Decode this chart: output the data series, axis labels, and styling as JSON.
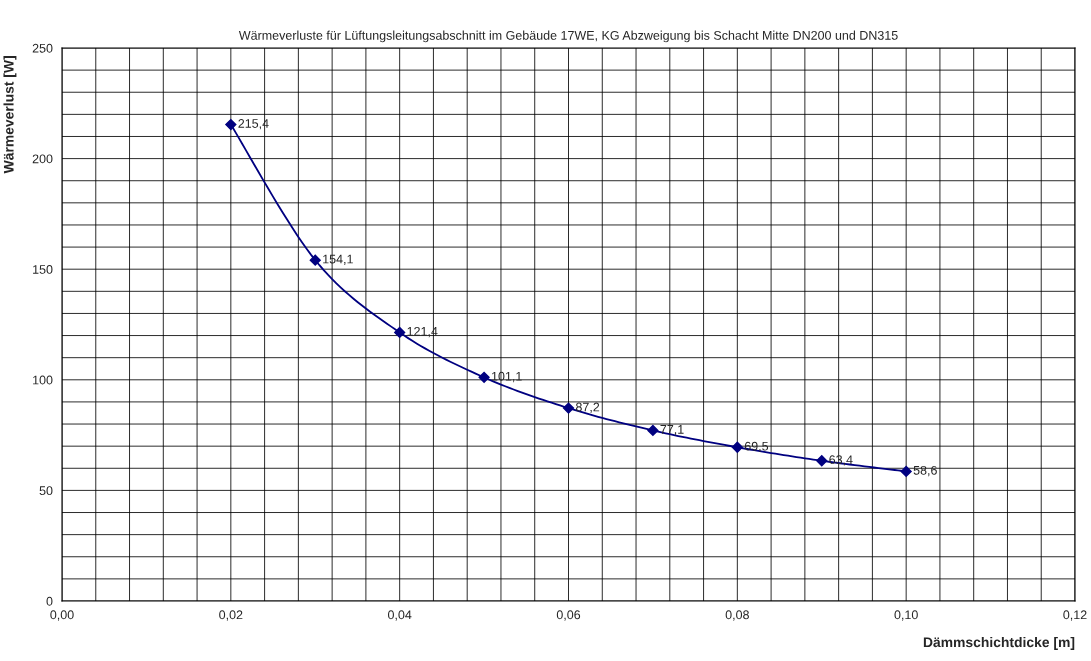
{
  "chart_data": {
    "type": "line",
    "title": "Wärmeverluste für Lüftungsleitungsabschnitt im Gebäude 17WE, KG Abzweigung bis Schacht Mitte DN200 und DN315",
    "xlabel": "Dämmschichtdicke [m]",
    "ylabel": "Wärmeverlust [W]",
    "x": [
      0.02,
      0.03,
      0.04,
      0.05,
      0.06,
      0.07,
      0.08,
      0.09,
      0.1
    ],
    "series": [
      {
        "color": "#000080",
        "values": [
          215.4,
          154.1,
          121.4,
          101.1,
          87.2,
          77.1,
          69.5,
          63.4,
          58.6
        ],
        "value_labels": [
          "215,4",
          "154,1",
          "121,4",
          "101,1",
          "87,2",
          "77,1",
          "69,5",
          "63,4",
          "58,6"
        ]
      }
    ],
    "xlim": [
      0,
      0.12
    ],
    "ylim": [
      0,
      250
    ],
    "xticks": [
      {
        "value": 0,
        "label": "0,00"
      },
      {
        "value": 0.004,
        "label": null
      },
      {
        "value": 0.008,
        "label": null
      },
      {
        "value": 0.012,
        "label": null
      },
      {
        "value": 0.016,
        "label": null
      },
      {
        "value": 0.02,
        "label": "0,02"
      },
      {
        "value": 0.024,
        "label": null
      },
      {
        "value": 0.028,
        "label": null
      },
      {
        "value": 0.032,
        "label": null
      },
      {
        "value": 0.036,
        "label": null
      },
      {
        "value": 0.04,
        "label": "0,04"
      },
      {
        "value": 0.044,
        "label": null
      },
      {
        "value": 0.048,
        "label": null
      },
      {
        "value": 0.052,
        "label": null
      },
      {
        "value": 0.056,
        "label": null
      },
      {
        "value": 0.06,
        "label": "0,06"
      },
      {
        "value": 0.064,
        "label": null
      },
      {
        "value": 0.068,
        "label": null
      },
      {
        "value": 0.072,
        "label": null
      },
      {
        "value": 0.076,
        "label": null
      },
      {
        "value": 0.08,
        "label": "0,08"
      },
      {
        "value": 0.084,
        "label": null
      },
      {
        "value": 0.088,
        "label": null
      },
      {
        "value": 0.092,
        "label": null
      },
      {
        "value": 0.096,
        "label": null
      },
      {
        "value": 0.1,
        "label": "0,10"
      },
      {
        "value": 0.104,
        "label": null
      },
      {
        "value": 0.108,
        "label": null
      },
      {
        "value": 0.112,
        "label": null
      },
      {
        "value": 0.116,
        "label": null
      },
      {
        "value": 0.12,
        "label": "0,12"
      }
    ],
    "yticks": [
      0,
      {
        "value": 10,
        "label": null
      },
      {
        "value": 20,
        "label": null
      },
      {
        "value": 30,
        "label": null
      },
      {
        "value": 40,
        "label": null
      },
      50,
      {
        "value": 60,
        "label": null
      },
      {
        "value": 70,
        "label": null
      },
      {
        "value": 80,
        "label": null
      },
      {
        "value": 90,
        "label": null
      },
      100,
      {
        "value": 110,
        "label": null
      },
      {
        "value": 120,
        "label": null
      },
      {
        "value": 130,
        "label": null
      },
      {
        "value": 140,
        "label": null
      },
      150,
      {
        "value": 160,
        "label": null
      },
      {
        "value": 170,
        "label": null
      },
      {
        "value": 180,
        "label": null
      },
      {
        "value": 190,
        "label": null
      },
      200,
      {
        "value": 210,
        "label": null
      },
      {
        "value": 220,
        "label": null
      },
      {
        "value": 230,
        "label": null
      },
      {
        "value": 240,
        "label": null
      },
      250
    ],
    "grid": true,
    "marker": "diamond",
    "line_style": "solid",
    "legend": false
  }
}
